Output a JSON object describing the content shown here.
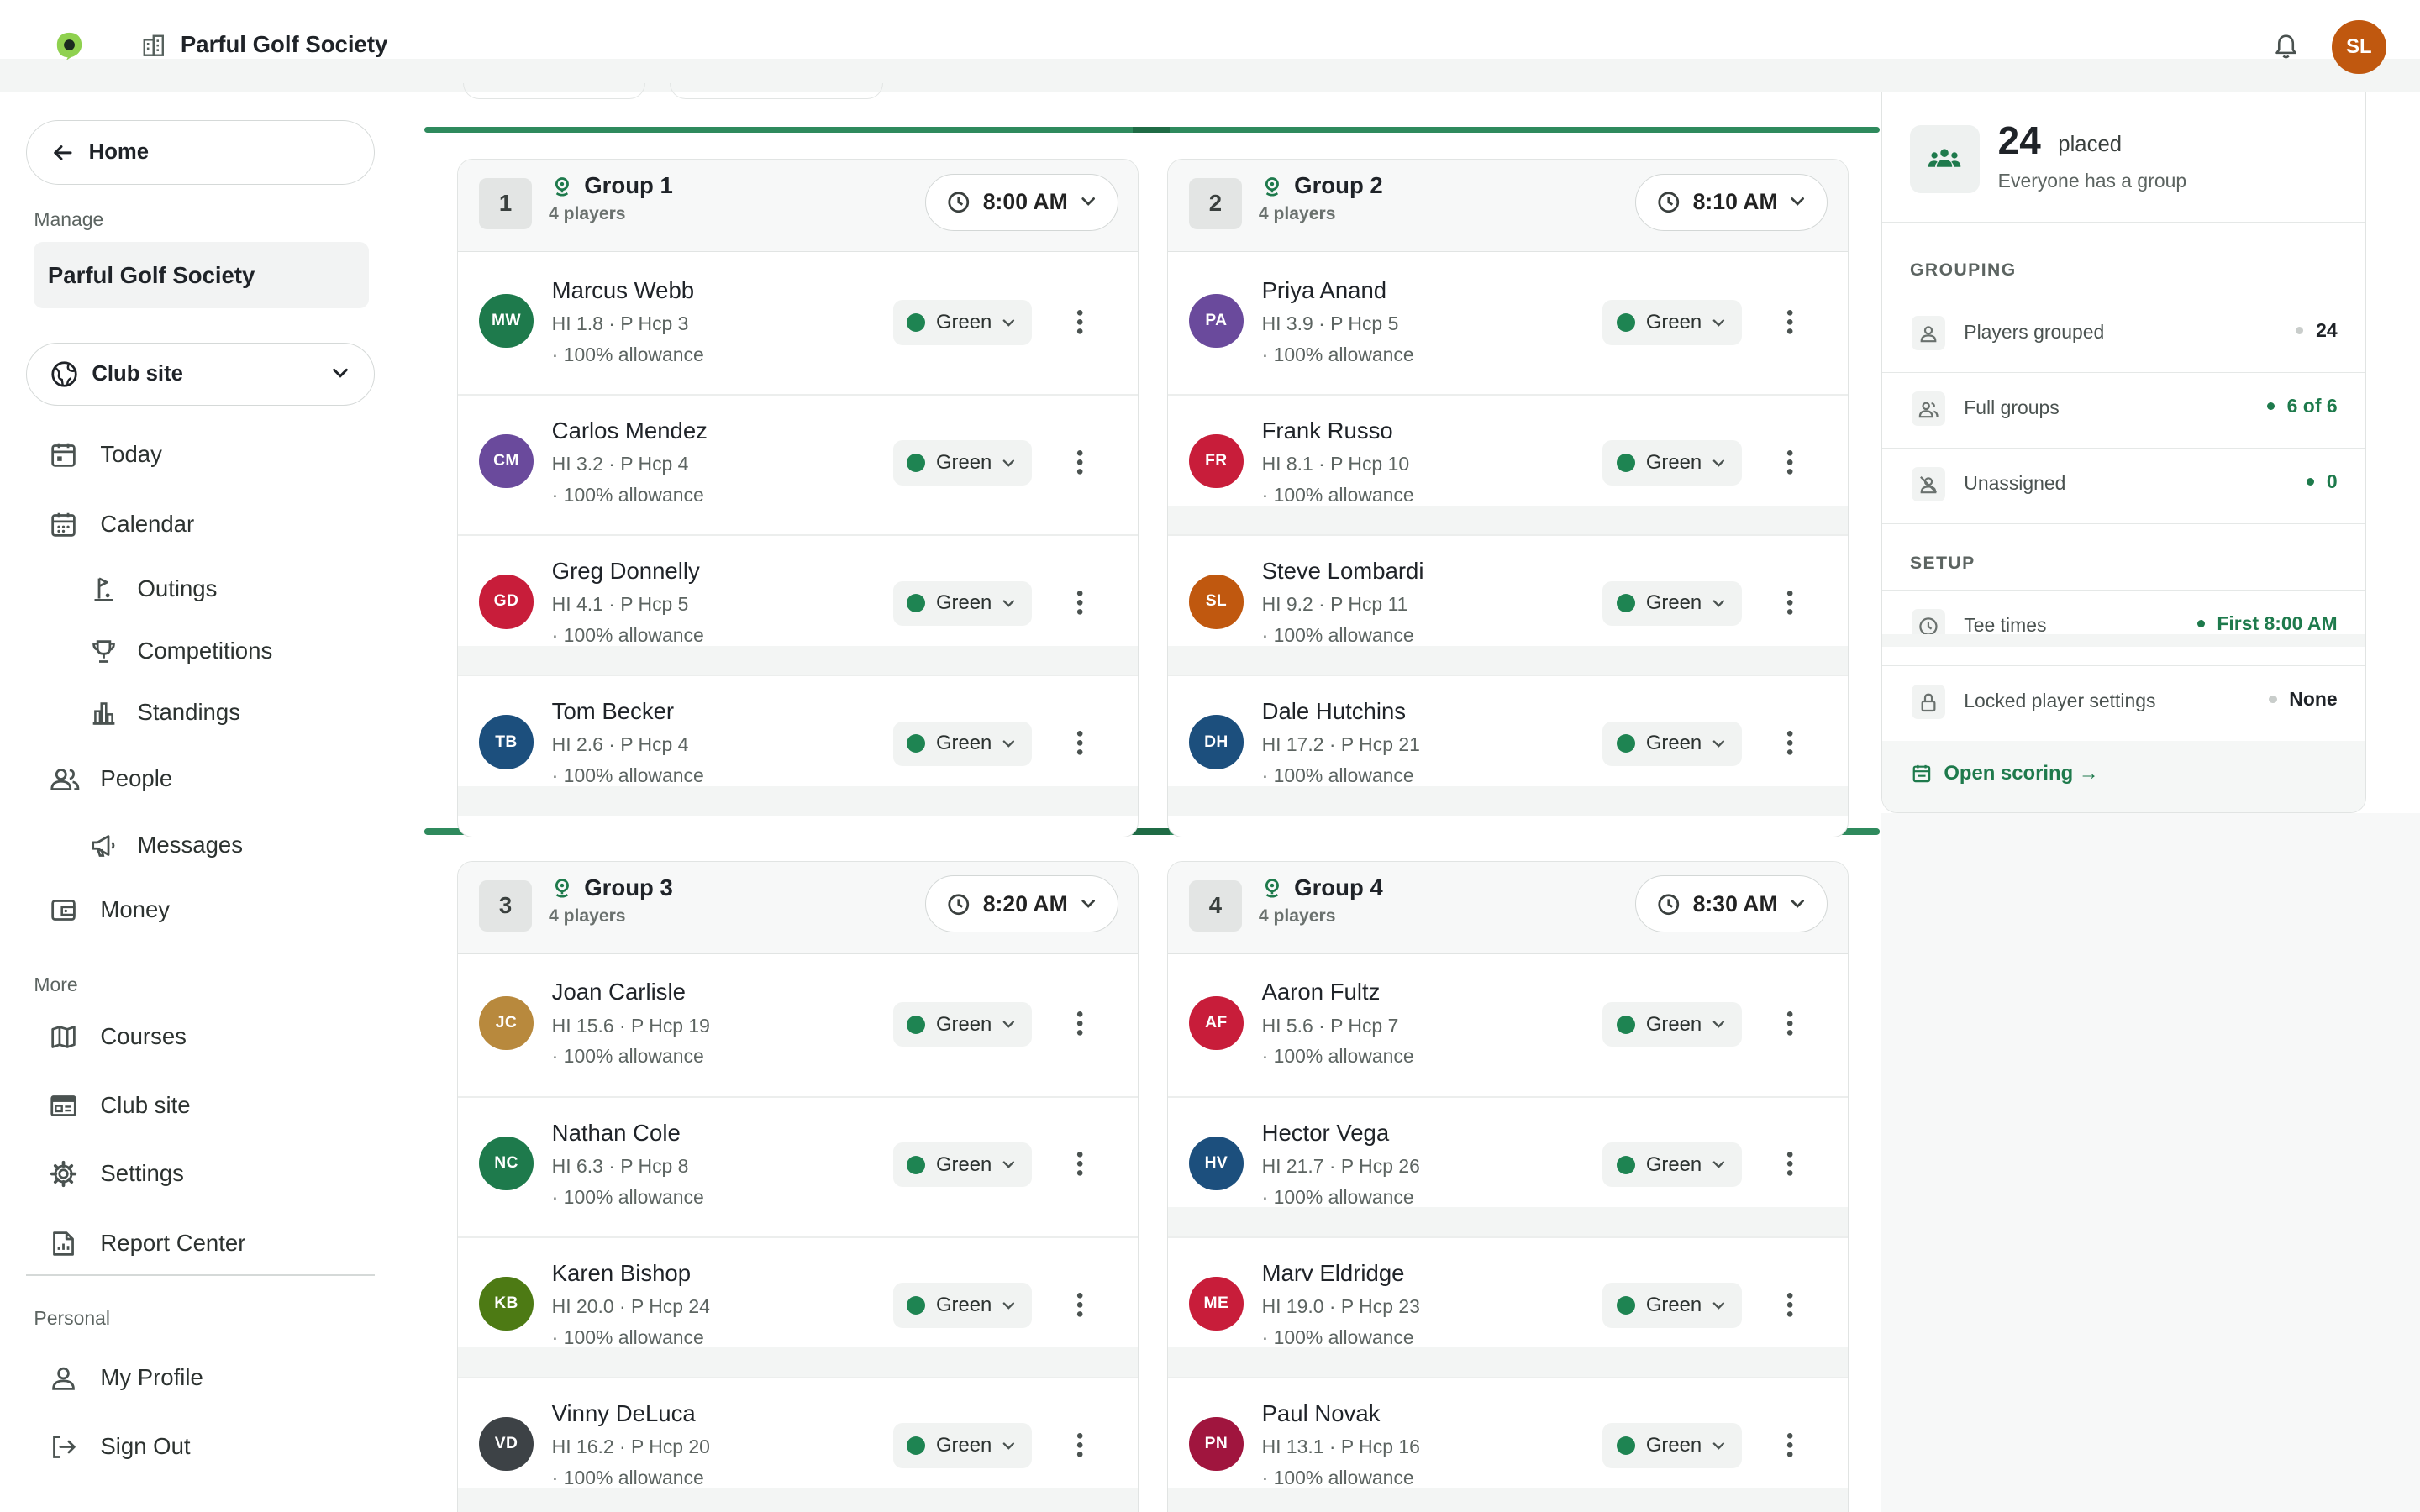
{
  "topbar": {
    "org_name": "Parful Golf Society",
    "user_initials": "SL"
  },
  "sidebar": {
    "home_label": "Home",
    "manage_label": "Manage",
    "org_label": "Parful Golf Society",
    "club_select": "Club site",
    "nav": {
      "today": "Today",
      "calendar": "Calendar",
      "outings": "Outings",
      "competitions": "Competitions",
      "standings": "Standings",
      "people": "People",
      "messages": "Messages",
      "money": "Money"
    },
    "more_label": "More",
    "more": {
      "courses": "Courses",
      "club_site": "Club site",
      "settings": "Settings",
      "report_center": "Report Center"
    },
    "personal_label": "Personal",
    "personal": {
      "my_profile": "My Profile",
      "sign_out": "Sign Out"
    }
  },
  "groups": [
    {
      "num": "1",
      "name": "Group 1",
      "count": "4 players",
      "time": "8:00 AM",
      "players": [
        {
          "initials": "MW",
          "color": "#1e7a4c",
          "name": "Marcus Webb",
          "stats": "HI 1.8 · P Hcp 3",
          "allow": "· 100% allowance",
          "tee": "Green"
        },
        {
          "initials": "CM",
          "color": "#6a4a9c",
          "name": "Carlos Mendez",
          "stats": "HI 3.2 · P Hcp 4",
          "allow": "· 100% allowance",
          "tee": "Green"
        },
        {
          "initials": "GD",
          "color": "#c81d3a",
          "name": "Greg Donnelly",
          "stats": "HI 4.1 · P Hcp 5",
          "allow": "· 100% allowance",
          "tee": "Green"
        },
        {
          "initials": "TB",
          "color": "#1c4f7d",
          "name": "Tom Becker",
          "stats": "HI 2.6 · P Hcp 4",
          "allow": "· 100% allowance",
          "tee": "Green"
        }
      ]
    },
    {
      "num": "2",
      "name": "Group 2",
      "count": "4 players",
      "time": "8:10 AM",
      "players": [
        {
          "initials": "PA",
          "color": "#6a4a9c",
          "name": "Priya Anand",
          "stats": "HI 3.9 · P Hcp 5",
          "allow": "· 100% allowance",
          "tee": "Green"
        },
        {
          "initials": "FR",
          "color": "#c81d3a",
          "name": "Frank Russo",
          "stats": "HI 8.1 · P Hcp 10",
          "allow": "· 100% allowance",
          "tee": "Green"
        },
        {
          "initials": "SL",
          "color": "#c0580f",
          "name": "Steve Lombardi",
          "stats": "HI 9.2 · P Hcp 11",
          "allow": "· 100% allowance",
          "tee": "Green"
        },
        {
          "initials": "DH",
          "color": "#1c4f7d",
          "name": "Dale Hutchins",
          "stats": "HI 17.2 · P Hcp 21",
          "allow": "· 100% allowance",
          "tee": "Green"
        }
      ]
    },
    {
      "num": "3",
      "name": "Group 3",
      "count": "4 players",
      "time": "8:20 AM",
      "players": [
        {
          "initials": "JC",
          "color": "#b8893d",
          "name": "Joan Carlisle",
          "stats": "HI 15.6 · P Hcp 19",
          "allow": "· 100% allowance",
          "tee": "Green"
        },
        {
          "initials": "NC",
          "color": "#1e7a4c",
          "name": "Nathan Cole",
          "stats": "HI 6.3 · P Hcp 8",
          "allow": "· 100% allowance",
          "tee": "Green"
        },
        {
          "initials": "KB",
          "color": "#4d7a14",
          "name": "Karen Bishop",
          "stats": "HI 20.0 · P Hcp 24",
          "allow": "· 100% allowance",
          "tee": "Green"
        },
        {
          "initials": "VD",
          "color": "#3d4246",
          "name": "Vinny DeLuca",
          "stats": "HI 16.2 · P Hcp 20",
          "allow": "· 100% allowance",
          "tee": "Green"
        }
      ]
    },
    {
      "num": "4",
      "name": "Group 4",
      "count": "4 players",
      "time": "8:30 AM",
      "players": [
        {
          "initials": "AF",
          "color": "#c81d3a",
          "name": "Aaron Fultz",
          "stats": "HI 5.6 · P Hcp 7",
          "allow": "· 100% allowance",
          "tee": "Green"
        },
        {
          "initials": "HV",
          "color": "#1c4f7d",
          "name": "Hector Vega",
          "stats": "HI 21.7 · P Hcp 26",
          "allow": "· 100% allowance",
          "tee": "Green"
        },
        {
          "initials": "ME",
          "color": "#c81d3a",
          "name": "Marv Eldridge",
          "stats": "HI 19.0 · P Hcp 23",
          "allow": "· 100% allowance",
          "tee": "Green"
        },
        {
          "initials": "PN",
          "color": "#a0153e",
          "name": "Paul Novak",
          "stats": "HI 13.1 · P Hcp 16",
          "allow": "· 100% allowance",
          "tee": "Green"
        }
      ]
    }
  ],
  "summary": {
    "placed_count": "24",
    "placed_label": "placed",
    "note": "Everyone has a group",
    "grouping_label": "GROUPING",
    "players_grouped_label": "Players grouped",
    "players_grouped_value": "24",
    "full_groups_label": "Full groups",
    "full_groups_value": "6 of 6",
    "unassigned_label": "Unassigned",
    "unassigned_value": "0",
    "setup_label": "SETUP",
    "tee_times_label": "Tee times",
    "tee_times_value": "First 8:00 AM",
    "locked_label": "Locked player settings",
    "locked_value": "None",
    "open_scoring": "Open scoring →"
  },
  "colors": {
    "accent": "#1e7a4c",
    "bar": "#2f8a5d",
    "tee_green": "#1e8452"
  }
}
